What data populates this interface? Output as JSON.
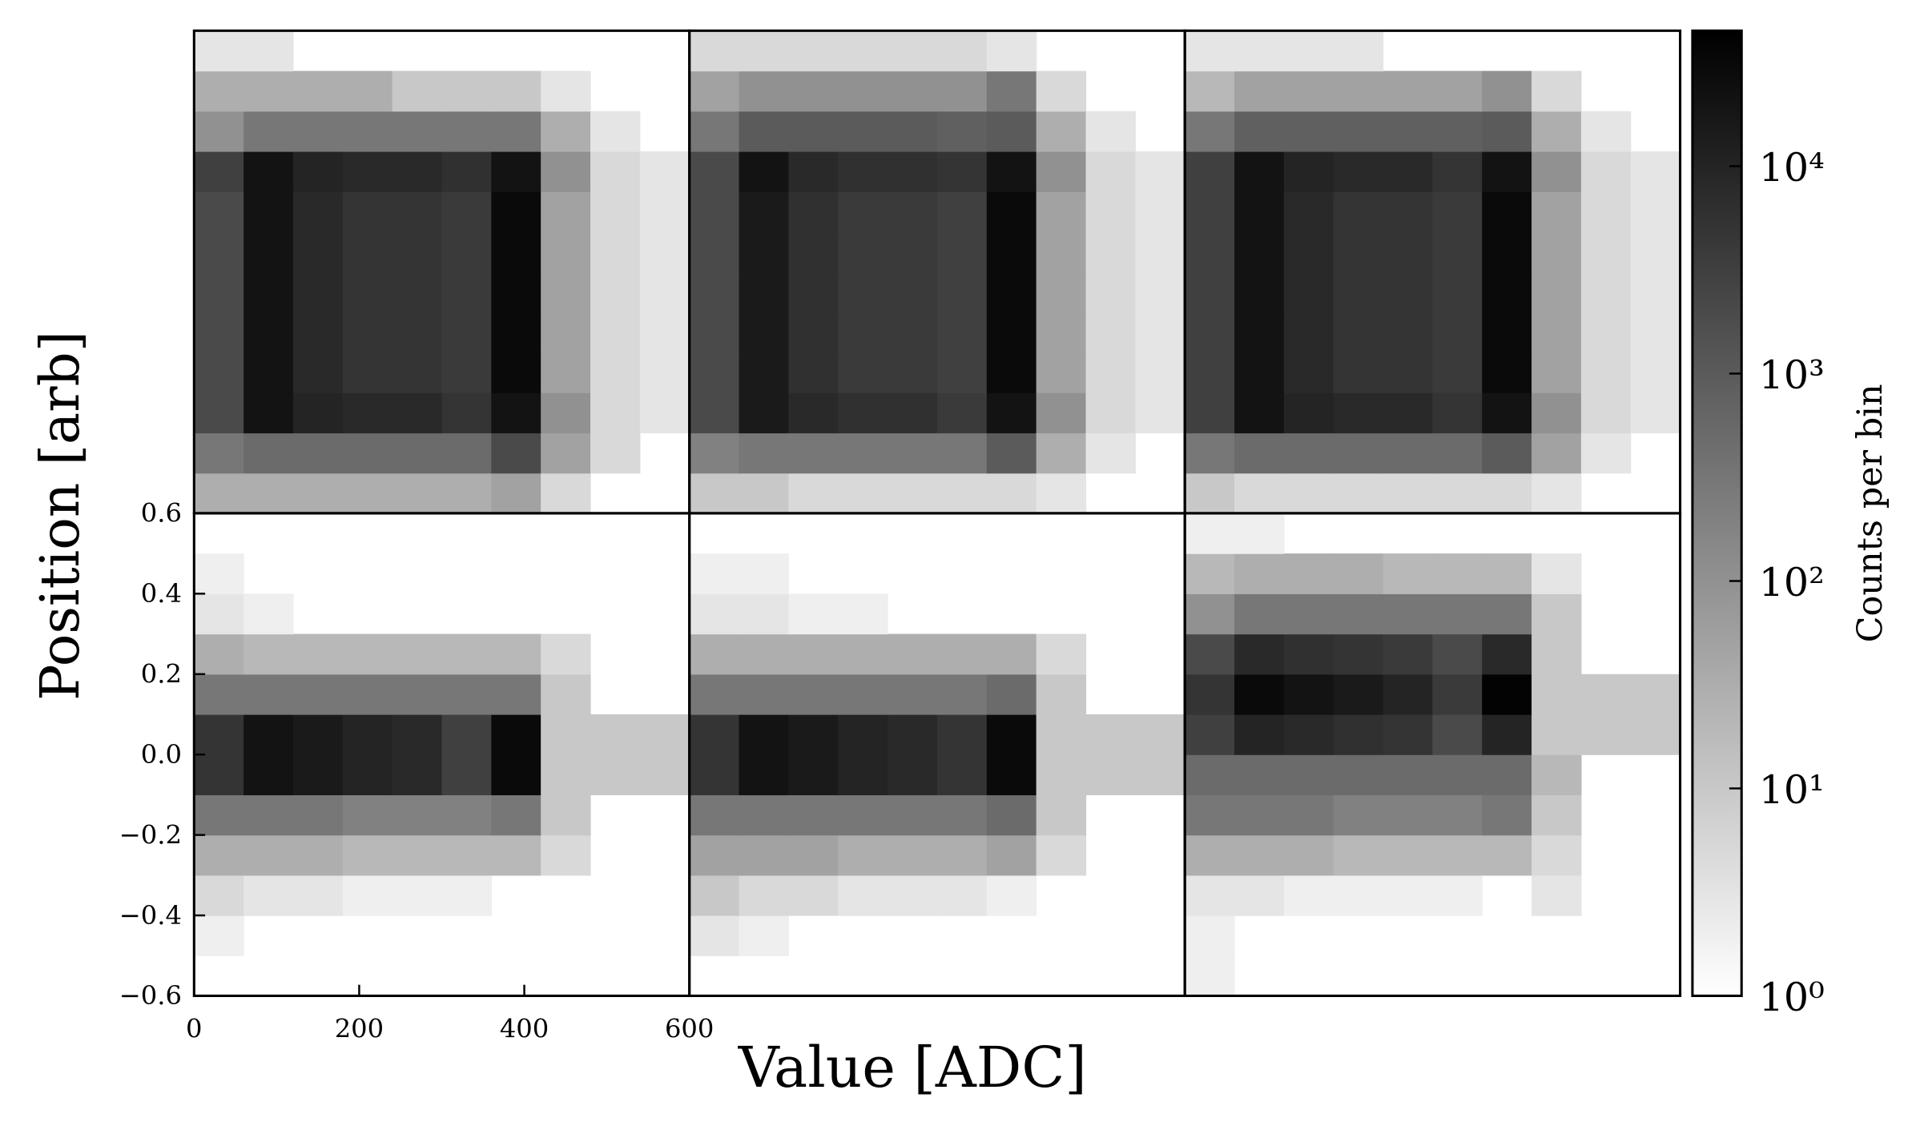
{
  "chart_data": {
    "type": "heatmap",
    "xlabel": "Value [ADC]",
    "ylabel": "Position [arb]",
    "colorbar_label": "Counts per bin",
    "xlim": [
      0,
      600
    ],
    "ylim": [
      -0.6,
      0.6
    ],
    "xticks": [
      0,
      200,
      400,
      600
    ],
    "yticks": [
      {
        "value": -0.6,
        "label": "−0.6"
      },
      {
        "value": -0.4,
        "label": "−0.4"
      },
      {
        "value": -0.2,
        "label": "−0.2"
      },
      {
        "value": 0,
        "label": "0.0"
      },
      0.2,
      0.4,
      0.6
    ],
    "clim": [
      1,
      45000
    ],
    "color_scale": "log",
    "cmap": [
      "#ffffff",
      "#000000"
    ],
    "cticks": [
      {
        "value": 1,
        "label": "10⁰"
      },
      {
        "value": 10,
        "label": "10¹"
      },
      {
        "value": 100,
        "label": "10²"
      },
      {
        "value": 1000,
        "label": "10³"
      },
      {
        "value": 10000,
        "label": "10⁴"
      }
    ],
    "x_bins": [
      0,
      60,
      120,
      180,
      240,
      300,
      360,
      420,
      480,
      540,
      600
    ],
    "y_bins": [
      -0.6,
      -0.5,
      -0.4,
      -0.3,
      -0.2,
      -0.1,
      0,
      0.1,
      0.2,
      0.3,
      0.4,
      0.5,
      0.6
    ],
    "panels": [
      {
        "values": [
          [
            30,
            30,
            30,
            30,
            30,
            30,
            50,
            5,
            0,
            0
          ],
          [
            300,
            500,
            500,
            500,
            500,
            500,
            2000,
            50,
            5,
            0
          ],
          [
            2000,
            20000,
            10000,
            8000,
            8000,
            5000,
            20000,
            100,
            5,
            3
          ],
          [
            2000,
            20000,
            8000,
            5000,
            5000,
            4000,
            30000,
            50,
            5,
            3
          ],
          [
            2000,
            20000,
            8000,
            5000,
            5000,
            4000,
            30000,
            50,
            5,
            3
          ],
          [
            2000,
            20000,
            8000,
            5000,
            5000,
            4000,
            30000,
            50,
            5,
            3
          ],
          [
            2000,
            20000,
            8000,
            5000,
            5000,
            4000,
            30000,
            50,
            5,
            3
          ],
          [
            2000,
            20000,
            8000,
            5000,
            5000,
            4000,
            30000,
            50,
            5,
            3
          ],
          [
            3000,
            20000,
            10000,
            8000,
            8000,
            6000,
            20000,
            100,
            5,
            3
          ],
          [
            100,
            300,
            300,
            300,
            300,
            300,
            300,
            30,
            3,
            0
          ],
          [
            30,
            30,
            30,
            30,
            10,
            10,
            10,
            3,
            0,
            0
          ],
          [
            3,
            3,
            0,
            0,
            0,
            0,
            0,
            0,
            0,
            0
          ]
        ]
      },
      {
        "values": [
          [
            10,
            10,
            5,
            5,
            5,
            5,
            5,
            3,
            0,
            0
          ],
          [
            200,
            300,
            300,
            300,
            300,
            300,
            1000,
            30,
            3,
            0
          ],
          [
            2000,
            15000,
            8000,
            6000,
            6000,
            4000,
            20000,
            100,
            5,
            3
          ],
          [
            2000,
            15000,
            6000,
            4000,
            4000,
            3000,
            30000,
            50,
            5,
            3
          ],
          [
            2000,
            15000,
            6000,
            4000,
            4000,
            3000,
            30000,
            50,
            5,
            3
          ],
          [
            2000,
            15000,
            6000,
            4000,
            4000,
            3000,
            30000,
            50,
            5,
            3
          ],
          [
            2000,
            15000,
            6000,
            4000,
            4000,
            3000,
            30000,
            50,
            5,
            3
          ],
          [
            2000,
            15000,
            6000,
            4000,
            4000,
            3000,
            30000,
            50,
            5,
            3
          ],
          [
            2000,
            20000,
            8000,
            6000,
            6000,
            5000,
            20000,
            100,
            5,
            3
          ],
          [
            300,
            1000,
            1000,
            1000,
            1000,
            800,
            1000,
            30,
            3,
            0
          ],
          [
            50,
            100,
            100,
            100,
            100,
            100,
            300,
            5,
            0,
            0
          ],
          [
            5,
            5,
            5,
            5,
            5,
            5,
            3,
            0,
            0,
            0
          ]
        ]
      },
      {
        "values": [
          [
            10,
            5,
            5,
            5,
            5,
            5,
            5,
            3,
            0,
            0
          ],
          [
            300,
            500,
            500,
            500,
            500,
            500,
            1000,
            50,
            3,
            0
          ],
          [
            3000,
            20000,
            10000,
            8000,
            8000,
            5000,
            20000,
            100,
            5,
            3
          ],
          [
            3000,
            20000,
            8000,
            5000,
            5000,
            4000,
            30000,
            50,
            5,
            3
          ],
          [
            3000,
            20000,
            8000,
            5000,
            5000,
            4000,
            30000,
            50,
            5,
            3
          ],
          [
            3000,
            20000,
            8000,
            5000,
            5000,
            4000,
            30000,
            50,
            5,
            3
          ],
          [
            3000,
            20000,
            8000,
            5000,
            5000,
            4000,
            30000,
            50,
            5,
            3
          ],
          [
            3000,
            20000,
            8000,
            5000,
            5000,
            4000,
            30000,
            50,
            5,
            3
          ],
          [
            3000,
            20000,
            10000,
            8000,
            8000,
            5000,
            20000,
            100,
            5,
            3
          ],
          [
            300,
            800,
            800,
            800,
            800,
            800,
            1000,
            30,
            3,
            0
          ],
          [
            20,
            50,
            50,
            50,
            50,
            50,
            100,
            5,
            0,
            0
          ],
          [
            3,
            3,
            3,
            3,
            0,
            0,
            0,
            0,
            0,
            0
          ]
        ]
      },
      {
        "values": [
          [
            0,
            0,
            0,
            0,
            0,
            0,
            0,
            0,
            0,
            0
          ],
          [
            2,
            0,
            0,
            0,
            0,
            0,
            0,
            0,
            0,
            0
          ],
          [
            5,
            3,
            3,
            2,
            2,
            2,
            0,
            0,
            0,
            0
          ],
          [
            30,
            30,
            30,
            20,
            20,
            20,
            20,
            5,
            0,
            0
          ],
          [
            300,
            300,
            300,
            200,
            200,
            200,
            300,
            10,
            0,
            0
          ],
          [
            5000,
            20000,
            15000,
            10000,
            8000,
            3000,
            30000,
            10,
            10,
            10
          ],
          [
            5000,
            20000,
            15000,
            10000,
            8000,
            3000,
            30000,
            10,
            10,
            10
          ],
          [
            300,
            300,
            300,
            300,
            300,
            300,
            300,
            10,
            0,
            0
          ],
          [
            30,
            20,
            20,
            20,
            20,
            20,
            20,
            5,
            0,
            0
          ],
          [
            3,
            2,
            0,
            0,
            0,
            0,
            0,
            0,
            0,
            0
          ],
          [
            2,
            0,
            0,
            0,
            0,
            0,
            0,
            0,
            0,
            0
          ],
          [
            0,
            0,
            0,
            0,
            0,
            0,
            0,
            0,
            0,
            0
          ]
        ]
      },
      {
        "values": [
          [
            0,
            0,
            0,
            0,
            0,
            0,
            0,
            0,
            0,
            0
          ],
          [
            3,
            2,
            0,
            0,
            0,
            0,
            0,
            0,
            0,
            0
          ],
          [
            10,
            5,
            5,
            3,
            3,
            3,
            2,
            0,
            0,
            0
          ],
          [
            50,
            50,
            50,
            30,
            30,
            30,
            50,
            5,
            0,
            0
          ],
          [
            300,
            300,
            300,
            300,
            300,
            300,
            500,
            10,
            0,
            0
          ],
          [
            5000,
            20000,
            15000,
            10000,
            8000,
            5000,
            30000,
            10,
            10,
            10
          ],
          [
            5000,
            20000,
            15000,
            10000,
            8000,
            5000,
            30000,
            10,
            10,
            10
          ],
          [
            300,
            300,
            300,
            300,
            300,
            300,
            500,
            10,
            0,
            0
          ],
          [
            30,
            30,
            30,
            30,
            30,
            30,
            30,
            5,
            0,
            0
          ],
          [
            3,
            3,
            2,
            2,
            0,
            0,
            0,
            0,
            0,
            0
          ],
          [
            2,
            2,
            0,
            0,
            0,
            0,
            0,
            0,
            0,
            0
          ],
          [
            0,
            0,
            0,
            0,
            0,
            0,
            0,
            0,
            0,
            0
          ]
        ]
      },
      {
        "values": [
          [
            2,
            0,
            0,
            0,
            0,
            0,
            0,
            0,
            0,
            0
          ],
          [
            2,
            0,
            0,
            0,
            0,
            0,
            0,
            0,
            0,
            0
          ],
          [
            3,
            3,
            2,
            2,
            2,
            2,
            0,
            3,
            0,
            0
          ],
          [
            30,
            30,
            30,
            20,
            20,
            20,
            20,
            5,
            0,
            0
          ],
          [
            300,
            300,
            300,
            200,
            200,
            200,
            300,
            10,
            0,
            0
          ],
          [
            500,
            500,
            500,
            500,
            500,
            500,
            500,
            20,
            0,
            0
          ],
          [
            3000,
            10000,
            8000,
            6000,
            5000,
            2000,
            10000,
            10,
            10,
            10
          ],
          [
            5000,
            30000,
            20000,
            15000,
            10000,
            4000,
            40000,
            10,
            10,
            10
          ],
          [
            2000,
            8000,
            6000,
            5000,
            4000,
            2000,
            8000,
            10,
            0,
            0
          ],
          [
            100,
            300,
            300,
            300,
            300,
            300,
            300,
            10,
            0,
            0
          ],
          [
            20,
            30,
            30,
            30,
            20,
            20,
            20,
            3,
            0,
            0
          ],
          [
            2,
            2,
            0,
            0,
            0,
            0,
            0,
            0,
            0,
            0
          ]
        ]
      }
    ]
  }
}
